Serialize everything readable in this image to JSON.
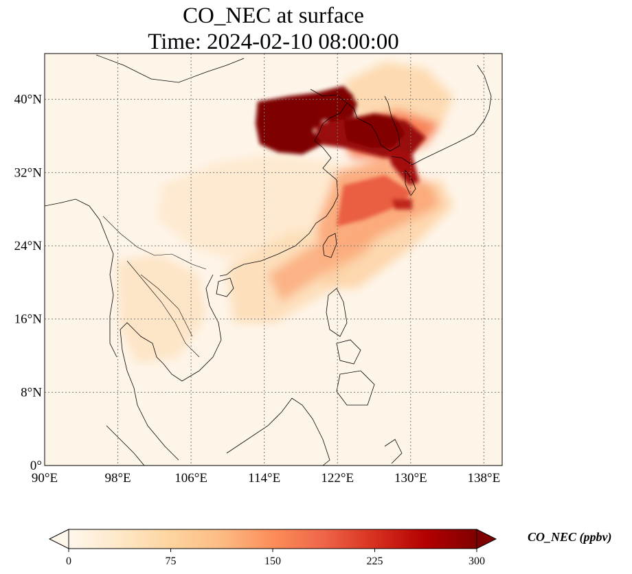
{
  "title": {
    "line1": "CO_NEC at surface",
    "line2": "Time: 2024-02-10 08:00:00"
  },
  "map": {
    "lon_range": [
      90,
      140
    ],
    "lat_range": [
      0,
      45
    ],
    "lon_ticks": [
      "90°E",
      "98°E",
      "106°E",
      "114°E",
      "122°E",
      "130°E",
      "138°E"
    ],
    "lat_ticks": [
      "0°",
      "8°N",
      "16°N",
      "24°N",
      "32°N",
      "40°N"
    ],
    "gridlines": "dotted",
    "coastlines": true,
    "borders": true
  },
  "colorbar": {
    "label": "CO_NEC (ppbv)",
    "ticks": [
      "0",
      "75",
      "150",
      "225",
      "300"
    ],
    "range": [
      0,
      300
    ],
    "extend": "both",
    "colormap": "OrRd",
    "colors": [
      "#fff7ec",
      "#fee8c8",
      "#fdd49e",
      "#fdbb84",
      "#fc8d59",
      "#ef6548",
      "#d7301f",
      "#b30000",
      "#7f0000"
    ]
  },
  "field": {
    "variable": "CO_NEC",
    "level": "surface",
    "units": "ppbv",
    "background_value": 5
  },
  "colors": {
    "frame": "#000000",
    "grid": "#777777",
    "coast": "#000000"
  }
}
